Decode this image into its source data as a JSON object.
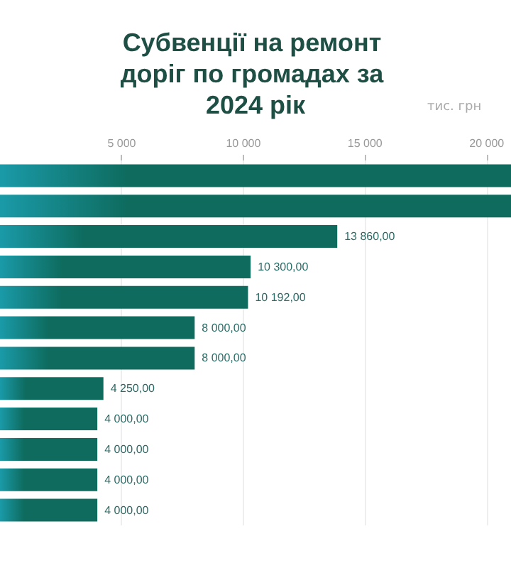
{
  "chart_data": {
    "type": "bar",
    "orientation": "horizontal",
    "title": "Субвенції на ремонт доріг по громадах за 2024 рік",
    "subtitle": "тис. грн",
    "categories": [
      null,
      null,
      null,
      null,
      null,
      null,
      null,
      null,
      null,
      null,
      null,
      null
    ],
    "values": [
      21000,
      21000,
      13860,
      10300,
      10192,
      8000,
      8000,
      4250,
      4000,
      4000,
      4000,
      4000
    ],
    "value_labels": [
      null,
      null,
      "13 860,00",
      "10 300,00",
      "10 192,00",
      "8 000,00",
      "8 000,00",
      "4 250,00",
      "4 000,00",
      "4 000,00",
      "4 000,00",
      "4 000,00"
    ],
    "color": "#0e6b5e",
    "xlim": [
      0,
      21000
    ],
    "xticks": [
      {
        "value": 5000,
        "label": "5 000"
      },
      {
        "value": 10000,
        "label": "10 000"
      },
      {
        "value": 15000,
        "label": "15 000"
      },
      {
        "value": 20000,
        "label": "20 000"
      }
    ],
    "grid": "x",
    "tick_labels": "x"
  }
}
